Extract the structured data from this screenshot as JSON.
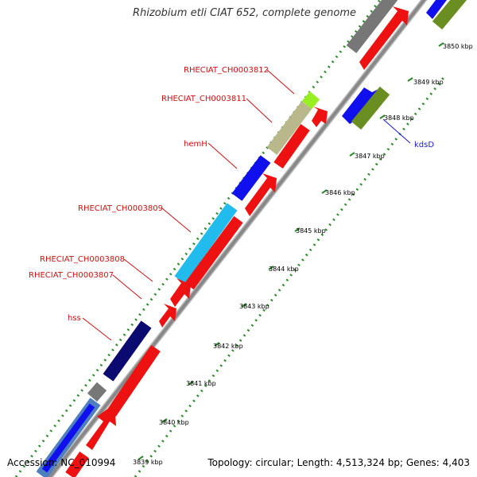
{
  "title": "Rhizobium etli CIAT 652, complete genome",
  "footer": {
    "accession": "Accession: NC_010994",
    "summary": "Topology: circular; Length: 4,513,324 bp; Genes: 4,403"
  },
  "colors": {
    "backbone": "#999999",
    "tick": "#2a8a2a",
    "red": "#ee1111",
    "blue": "#1010ee",
    "navy": "#0a0a70",
    "cyan": "#22bbee",
    "gray": "#777777",
    "olive": "#6b8e23",
    "khaki": "#b8b88a",
    "lime": "#99ee22",
    "steel": "#4f7fbf"
  },
  "ticks": [
    "3839 kbp",
    "3840 kbp",
    "3841 kbp",
    "3842 kbp",
    "3843 kbp",
    "3844 kbp",
    "3845 kbp",
    "3846 kbp",
    "3847 kbp",
    "3848 kbp",
    "3849 kbp",
    "3850 kbp"
  ],
  "labels": {
    "ch3812": "RHECIAT_CH0003812",
    "ch3811": "RHECIAT_CH0003811",
    "hemH": "hemH",
    "ch3809": "RHECIAT_CH0003809",
    "ch3808": "RHECIAT_CH0003808",
    "ch3807": "RHECIAT_CH0003807",
    "hss": "hss",
    "kdsD": "kdsD"
  }
}
